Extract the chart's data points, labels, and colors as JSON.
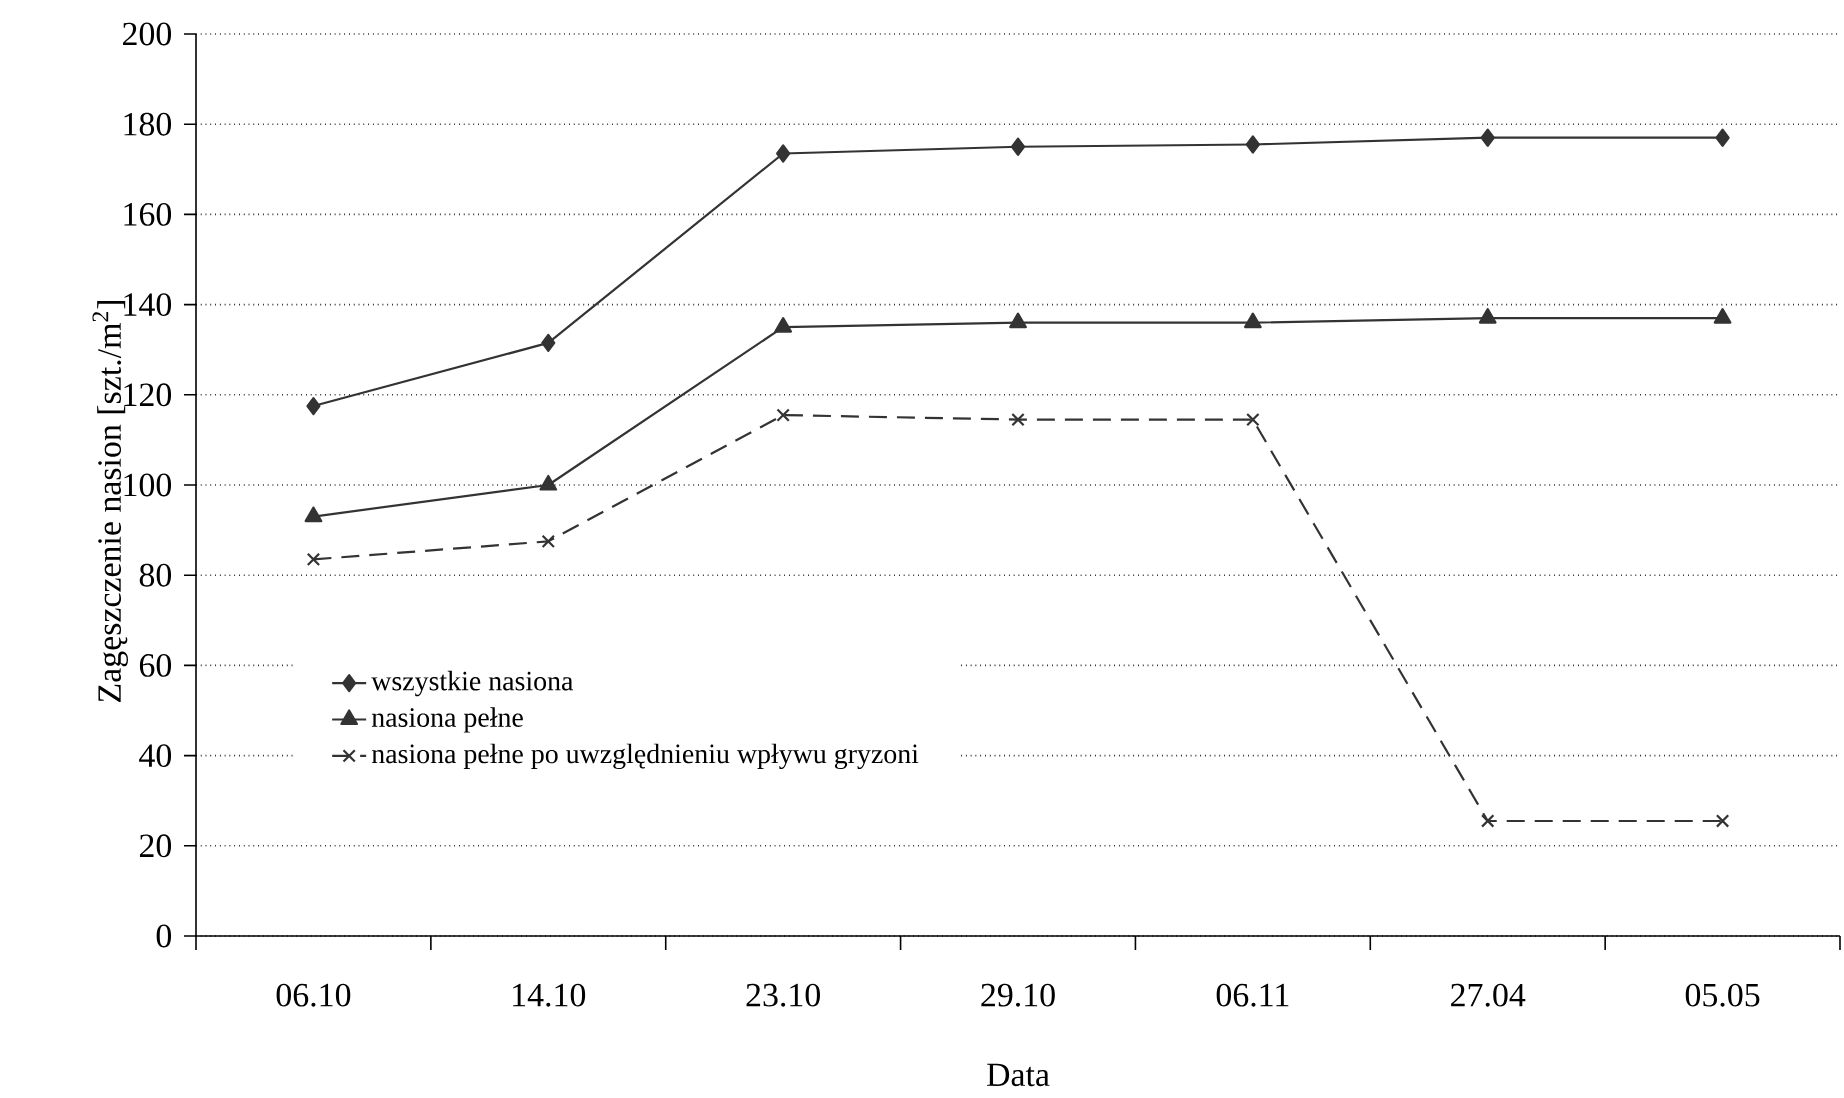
{
  "chart_data": {
    "type": "line",
    "xlabel": "Data",
    "ylabel": "Zagęszczenie nasion [szt./m$^{2}$]",
    "categories": [
      "06.10",
      "14.10",
      "23.10",
      "29.10",
      "06.11",
      "27.04",
      "05.05"
    ],
    "series": [
      {
        "name": "wszystkie nasiona",
        "color": "#333333",
        "marker": "diamond",
        "line_style": "solid",
        "values": [
          117.5,
          131.5,
          173.5,
          175,
          175.5,
          177,
          177
        ]
      },
      {
        "name": "nasiona pełne",
        "color": "#333333",
        "marker": "triangle",
        "line_style": "solid",
        "values": [
          93,
          100,
          135,
          136,
          136,
          137,
          137
        ]
      },
      {
        "name": "nasiona pełne po uwzględnieniu wpływu gryzoni",
        "color": "#333333",
        "marker": "cross",
        "line_style": "dashed",
        "values": [
          83.5,
          87.5,
          115.5,
          114.5,
          114.5,
          25.5,
          25.5
        ]
      }
    ],
    "ylim": [
      0,
      200
    ],
    "yticks": [
      0,
      20,
      40,
      60,
      80,
      100,
      120,
      140,
      160,
      180,
      200
    ],
    "grid": "y",
    "legend": "left"
  }
}
